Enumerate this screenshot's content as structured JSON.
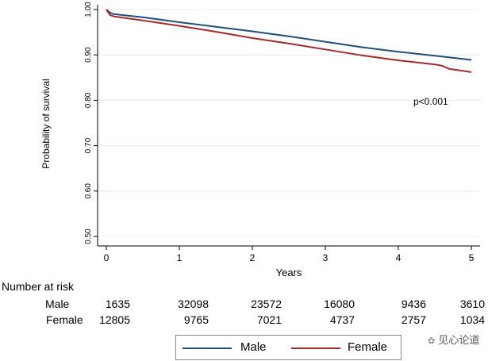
{
  "chart_data": {
    "type": "line",
    "title": "",
    "xlabel": "Years",
    "ylabel": "Probability of survival",
    "xlim": [
      0,
      5
    ],
    "ylim": [
      0.5,
      1.0
    ],
    "xticks": [
      "0",
      "1",
      "2",
      "3",
      "4",
      "5"
    ],
    "yticks": [
      "0.50",
      "0.60",
      "0.70",
      "0.80",
      "0.90",
      "1.00"
    ],
    "grid": "horizontal",
    "annotation": "p<0.001",
    "series": [
      {
        "name": "Male",
        "color": "#1f4e79",
        "x": [
          0,
          0.05,
          0.1,
          0.5,
          1.0,
          1.5,
          2.0,
          2.5,
          3.0,
          3.5,
          4.0,
          4.5,
          5.0
        ],
        "y": [
          1.0,
          0.993,
          0.99,
          0.983,
          0.972,
          0.962,
          0.952,
          0.941,
          0.929,
          0.917,
          0.907,
          0.898,
          0.889
        ]
      },
      {
        "name": "Female",
        "color": "#a52a2a",
        "x": [
          0,
          0.05,
          0.1,
          0.5,
          1.0,
          1.5,
          2.0,
          2.5,
          3.0,
          3.5,
          4.0,
          4.5,
          4.6,
          4.7,
          5.0
        ],
        "y": [
          1.0,
          0.988,
          0.985,
          0.976,
          0.964,
          0.951,
          0.937,
          0.925,
          0.912,
          0.899,
          0.888,
          0.879,
          0.876,
          0.869,
          0.862
        ]
      }
    ]
  },
  "risk_table": {
    "title": "Number at risk",
    "rows": [
      {
        "label": "Male",
        "values": [
          "1635",
          "32098",
          "23572",
          "16080",
          "9436",
          "3610"
        ]
      },
      {
        "label": "Female",
        "values": [
          "12805",
          "9765",
          "7021",
          "4737",
          "2757",
          "1034"
        ]
      }
    ]
  },
  "legend": {
    "items": [
      {
        "label": "Male",
        "color": "#1f4e79"
      },
      {
        "label": "Female",
        "color": "#a52a2a"
      }
    ]
  },
  "watermark": {
    "text": "见心论道",
    "icon": "wechat-icon"
  }
}
